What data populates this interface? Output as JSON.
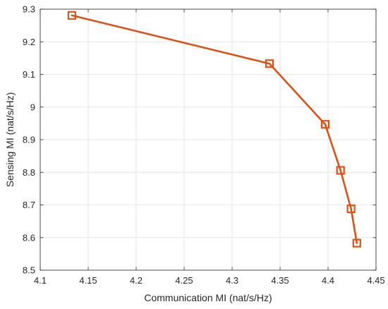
{
  "chart_data": {
    "type": "line",
    "title": "",
    "xlabel": "Communication MI (nat/s/Hz)",
    "ylabel": "Sensing MI (nat/s/Hz)",
    "xlim": [
      4.1,
      4.45
    ],
    "ylim": [
      8.5,
      9.3
    ],
    "xticks": [
      4.1,
      4.15,
      4.2,
      4.25,
      4.3,
      4.35,
      4.4,
      4.45
    ],
    "xtick_labels": [
      "4.1",
      "4.15",
      "4.2",
      "4.25",
      "4.3",
      "4.35",
      "4.4",
      "4.45"
    ],
    "yticks": [
      8.5,
      8.6,
      8.7,
      8.8,
      8.9,
      9.0,
      9.1,
      9.2,
      9.3
    ],
    "ytick_labels": [
      "8.5",
      "8.6",
      "8.7",
      "8.8",
      "8.9",
      "9",
      "9.1",
      "9.2",
      "9.3"
    ],
    "grid": true,
    "series": [
      {
        "color": "#d95319",
        "marker": "square",
        "x": [
          4.133,
          4.339,
          4.397,
          4.413,
          4.424,
          4.43
        ],
        "y": [
          9.281,
          9.133,
          8.947,
          8.806,
          8.688,
          8.583
        ]
      }
    ]
  }
}
